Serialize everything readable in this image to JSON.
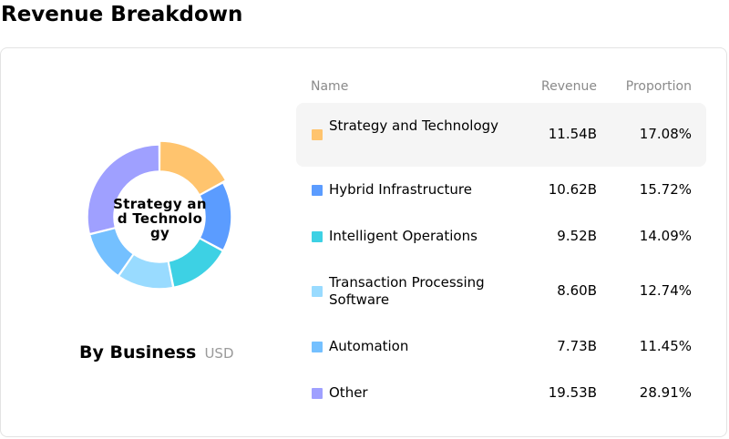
{
  "page_title": "Revenue Breakdown",
  "caption": {
    "title": "By Business",
    "unit": "USD"
  },
  "center_label": "Strategy and Technology",
  "table_headers": {
    "name": "Name",
    "revenue": "Revenue",
    "proportion": "Proportion"
  },
  "rows": [
    {
      "name": "Strategy and Technology",
      "revenue": "11.54B",
      "proportion": "17.08%",
      "color": "#FFC46E"
    },
    {
      "name": "Hybrid Infrastructure",
      "revenue": "10.62B",
      "proportion": "15.72%",
      "color": "#5B9CFF"
    },
    {
      "name": "Intelligent Operations",
      "revenue": "9.52B",
      "proportion": "14.09%",
      "color": "#3DD1E4"
    },
    {
      "name": "Transaction Processing Software",
      "revenue": "8.60B",
      "proportion": "12.74%",
      "color": "#99DBFF"
    },
    {
      "name": "Automation",
      "revenue": "7.73B",
      "proportion": "11.45%",
      "color": "#74C0FF"
    },
    {
      "name": "Other",
      "revenue": "19.53B",
      "proportion": "28.91%",
      "color": "#9FA0FF"
    }
  ],
  "chart_data": {
    "type": "pie",
    "categories": [
      "Strategy and Technology",
      "Hybrid Infrastructure",
      "Intelligent Operations",
      "Transaction Processing Software",
      "Automation",
      "Other"
    ],
    "values": [
      11.54,
      10.62,
      9.52,
      8.6,
      7.73,
      19.53
    ],
    "colors": [
      "#FFC46E",
      "#5B9CFF",
      "#3DD1E4",
      "#99DBFF",
      "#74C0FF",
      "#9FA0FF"
    ],
    "highlighted": "Strategy and Technology",
    "title": "By Business",
    "unit": "USD"
  }
}
